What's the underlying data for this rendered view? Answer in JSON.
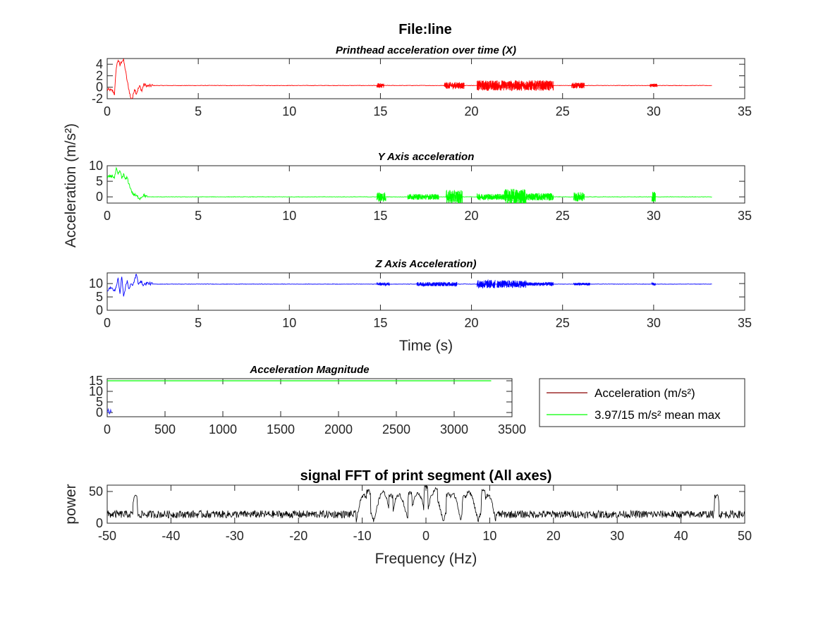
{
  "figure": {
    "title": "File:line"
  },
  "shared": {
    "ylabel": "Acceleration (m/s²)"
  },
  "chart_data": [
    {
      "id": "x-axis-plot",
      "type": "line",
      "title": "Printhead acceleration over time (X)",
      "xlabel": "",
      "ylabel": "",
      "xlim": [
        0,
        35
      ],
      "ylim": [
        -2,
        5
      ],
      "xticks": [
        0,
        5,
        10,
        15,
        20,
        25,
        30,
        35
      ],
      "yticks": [
        -2,
        0,
        2,
        4
      ],
      "color": "#ff0000",
      "series": [
        {
          "values_note": "",
          "x": [
            0,
            0.3,
            0.4,
            0.5,
            0.6,
            0.7,
            0.8,
            0.9,
            1.0,
            1.1,
            1.2,
            1.3,
            1.4,
            1.5,
            1.6,
            1.7,
            1.8,
            1.9,
            2.0,
            2.2,
            2.5,
            14.8,
            33.2
          ],
          "y": [
            -0.4,
            -0.6,
            -1.2,
            3.5,
            4.8,
            3.8,
            4.6,
            4.7,
            3.0,
            1.0,
            -0.5,
            -2.0,
            -1.8,
            -0.2,
            -1.1,
            -0.3,
            0.2,
            -0.7,
            0.5,
            0.2,
            0.3,
            0.3,
            0.3
          ]
        }
      ],
      "bursts": [
        [
          14.8,
          15.2,
          0.4
        ],
        [
          18.5,
          19.6,
          0.6
        ],
        [
          20.3,
          24.5,
          0.9
        ],
        [
          25.5,
          26.2,
          0.5
        ],
        [
          29.8,
          30.2,
          0.3
        ]
      ]
    },
    {
      "id": "y-axis-plot",
      "type": "line",
      "title": "Y Axis acceleration",
      "xlabel": "",
      "ylabel": "",
      "xlim": [
        0,
        35
      ],
      "ylim": [
        -2,
        10
      ],
      "xticks": [
        0,
        5,
        10,
        15,
        20,
        25,
        30,
        35
      ],
      "yticks": [
        0,
        5,
        10
      ],
      "color": "#00ff00",
      "series": [
        {
          "values_note": "",
          "x": [
            0,
            0.3,
            0.4,
            0.5,
            0.6,
            0.7,
            0.8,
            0.9,
            1.0,
            1.1,
            1.2,
            1.3,
            1.4,
            1.6,
            1.8,
            2.0,
            2.2,
            33.2
          ],
          "y": [
            6.2,
            6.8,
            6.0,
            9.0,
            7.0,
            8.5,
            6.0,
            7.2,
            5.5,
            6.2,
            4.0,
            2.5,
            1.0,
            0.3,
            -0.5,
            0.6,
            0.0,
            0.0
          ]
        }
      ],
      "bursts": [
        [
          14.8,
          15.3,
          1.6
        ],
        [
          16.5,
          18.2,
          0.9
        ],
        [
          18.6,
          19.5,
          2.2
        ],
        [
          20.3,
          21.8,
          1.0
        ],
        [
          21.8,
          23.0,
          2.6
        ],
        [
          23.0,
          24.5,
          1.2
        ],
        [
          25.6,
          26.2,
          1.5
        ],
        [
          29.9,
          30.1,
          1.6
        ]
      ]
    },
    {
      "id": "z-axis-plot",
      "type": "line",
      "title": "Z Axis Acceleration)",
      "xlabel": "Time (s)",
      "ylabel": "",
      "xlim": [
        0,
        35
      ],
      "ylim": [
        0,
        14
      ],
      "xticks": [
        0,
        5,
        10,
        15,
        20,
        25,
        30,
        35
      ],
      "yticks": [
        0,
        5,
        10
      ],
      "color": "#0000ff",
      "series": [
        {
          "values_note": "",
          "x": [
            0,
            0.2,
            0.4,
            0.5,
            0.6,
            0.7,
            0.8,
            0.9,
            1.0,
            1.1,
            1.2,
            1.3,
            1.4,
            1.5,
            1.6,
            1.7,
            1.8,
            2.0,
            2.2,
            2.5,
            33.2
          ],
          "y": [
            7.5,
            8.5,
            7.2,
            9.0,
            12.0,
            6.0,
            13.0,
            5.5,
            8.5,
            11.0,
            8.0,
            9.8,
            9.0,
            11.5,
            13.5,
            10.0,
            11.0,
            9.5,
            10.2,
            9.8,
            9.8
          ]
        }
      ],
      "bursts": [
        [
          14.8,
          15.5,
          0.6
        ],
        [
          17.0,
          19.2,
          0.8
        ],
        [
          20.3,
          21.3,
          1.6
        ],
        [
          21.4,
          23.0,
          1.4
        ],
        [
          23.0,
          24.5,
          0.7
        ],
        [
          25.6,
          26.5,
          0.5
        ],
        [
          29.9,
          30.1,
          0.6
        ]
      ]
    },
    {
      "id": "magnitude-plot",
      "type": "line",
      "title": "Acceleration Magnitude",
      "xlabel": "",
      "ylabel": "",
      "xlim": [
        0,
        3500
      ],
      "ylim": [
        -2,
        16
      ],
      "xticks": [
        0,
        500,
        1000,
        1500,
        2000,
        2500,
        3000,
        3500
      ],
      "yticks": [
        0,
        5,
        10,
        15
      ],
      "legend_position": "outside-right",
      "series": [
        {
          "name": "Acceleration (m/s²)",
          "color": "#8b0000",
          "x": [
            0,
            10,
            20,
            30,
            35
          ],
          "y": [
            0,
            1.5,
            -0.8,
            1.2,
            0.2
          ]
        },
        {
          "name": "3.97/15 m/s² mean max",
          "color": "#00ff00",
          "x": [
            0,
            3320
          ],
          "y": [
            15,
            15
          ]
        }
      ]
    },
    {
      "id": "fft-plot",
      "type": "line",
      "title": "signal FFT of print segment (All axes)",
      "xlabel": "Frequency (Hz)",
      "ylabel": "power",
      "xlim": [
        -50,
        50
      ],
      "ylim": [
        0,
        60
      ],
      "xticks": [
        -50,
        -40,
        -30,
        -20,
        -10,
        0,
        10,
        20,
        30,
        40,
        50
      ],
      "yticks": [
        0,
        50
      ],
      "color": "#000000",
      "peaks": [
        {
          "x": -45.6,
          "y": 45
        },
        {
          "x": -9.0,
          "y": 53
        },
        {
          "x": -5.5,
          "y": 46
        },
        {
          "x": -2.5,
          "y": 50
        },
        {
          "x": 0,
          "y": 60
        },
        {
          "x": 1.5,
          "y": 56
        },
        {
          "x": 3.5,
          "y": 48
        },
        {
          "x": 6.0,
          "y": 44
        },
        {
          "x": 9.0,
          "y": 53
        },
        {
          "x": 45.6,
          "y": 45
        }
      ]
    }
  ]
}
